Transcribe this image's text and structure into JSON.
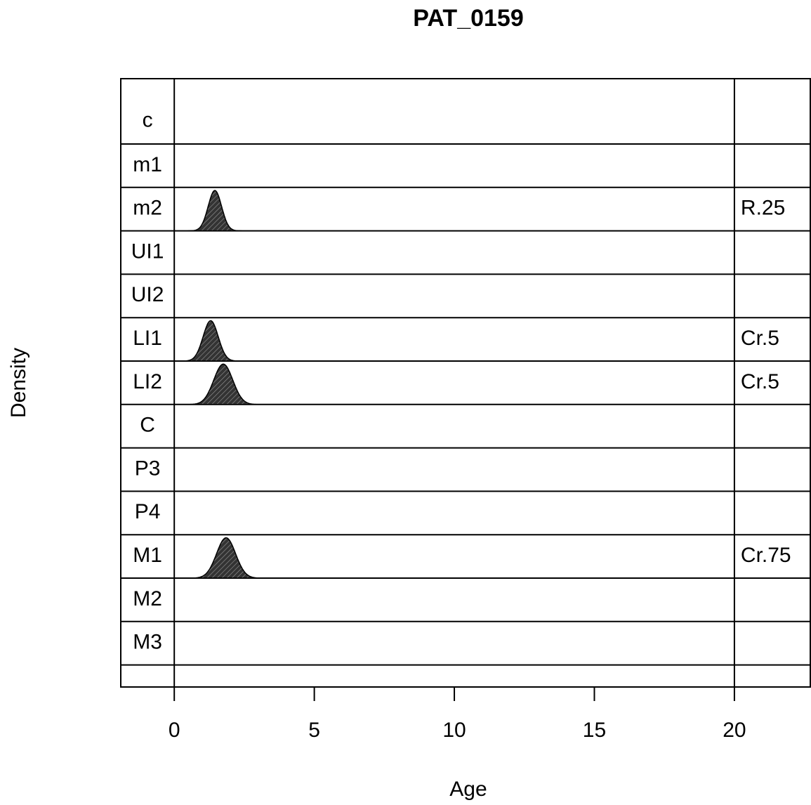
{
  "chart_data": {
    "type": "density",
    "title": "PAT_0159",
    "xlabel": "Age",
    "ylabel": "Density",
    "xlim": [
      -1.91,
      22.71
    ],
    "xticks": [
      0,
      5,
      10,
      15,
      20
    ],
    "rows": [
      {
        "name": "c"
      },
      {
        "name": "m1"
      },
      {
        "name": "m2",
        "stage": "R.25",
        "mean": 1.45,
        "sd": 0.24
      },
      {
        "name": "UI1"
      },
      {
        "name": "UI2"
      },
      {
        "name": "LI1",
        "stage": "Cr.5",
        "mean": 1.3,
        "sd": 0.27
      },
      {
        "name": "LI2",
        "stage": "Cr.5",
        "mean": 1.75,
        "sd": 0.34
      },
      {
        "name": "C"
      },
      {
        "name": "P3"
      },
      {
        "name": "P4"
      },
      {
        "name": "M1",
        "stage": "Cr.75",
        "mean": 1.85,
        "sd": 0.34
      },
      {
        "name": "M2"
      },
      {
        "name": "M3"
      }
    ]
  }
}
